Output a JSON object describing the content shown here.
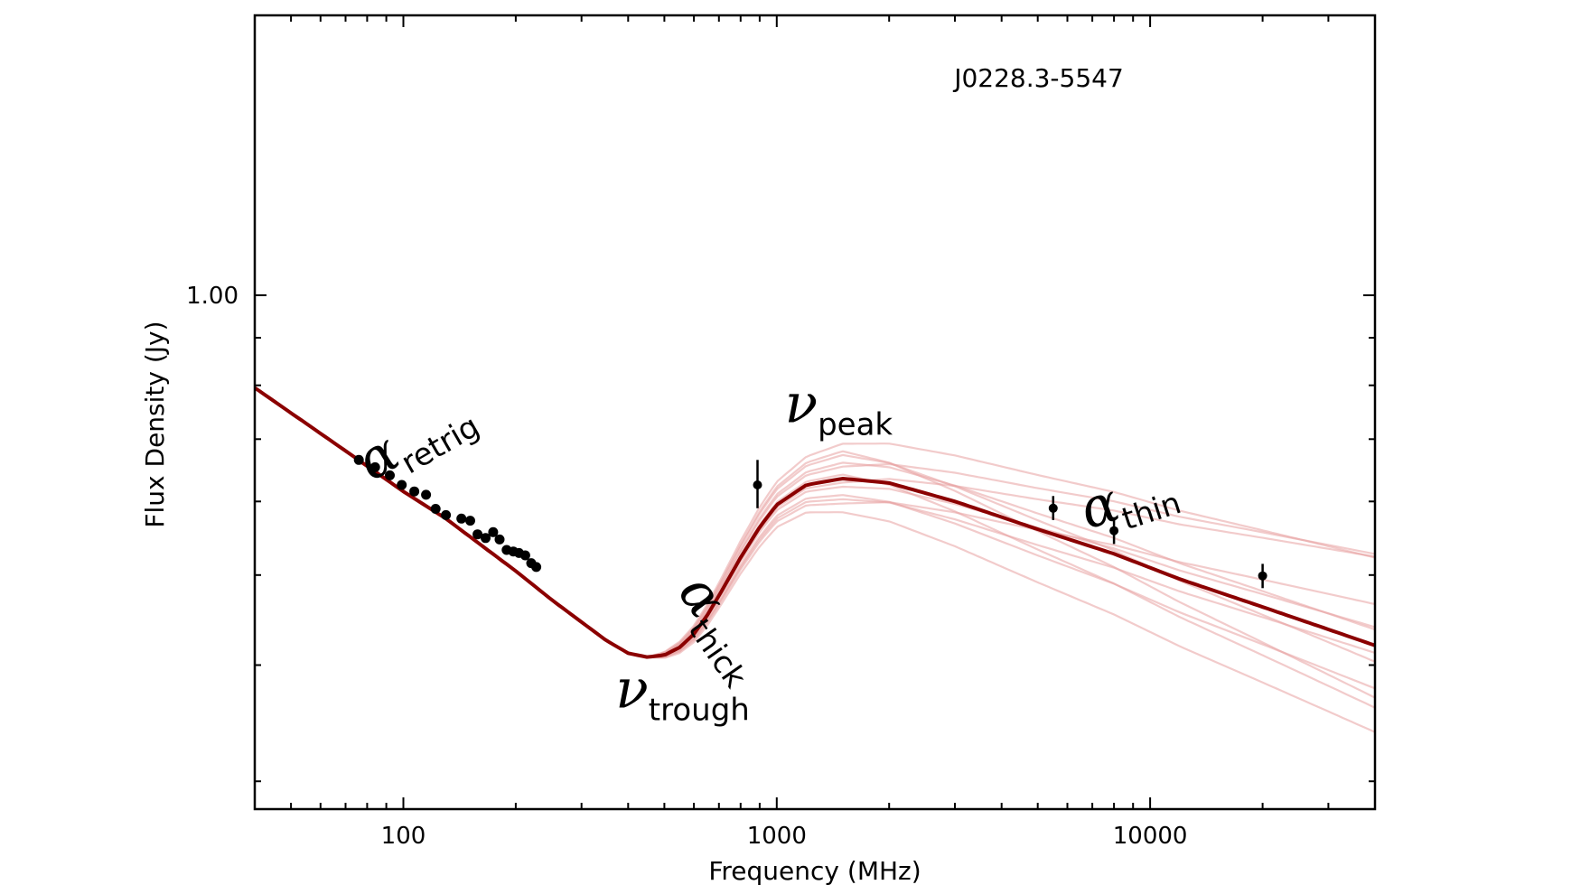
{
  "chart_data": {
    "type": "line",
    "source_name": "J0228.3-5547",
    "xlabel": "Frequency (MHz)",
    "ylabel": "Flux Density (Jy)",
    "xscale": "log",
    "yscale": "log",
    "xlim": [
      40,
      40000
    ],
    "ylim": [
      0.28,
      2.0
    ],
    "x_ticks": [
      {
        "value": 100,
        "label": "100"
      },
      {
        "value": 1000,
        "label": "1000"
      },
      {
        "value": 10000,
        "label": "10000"
      }
    ],
    "y_ticks": [
      {
        "value": 1.0,
        "label": "1.00"
      }
    ],
    "y_minor_ticks": [
      0.3,
      0.4,
      0.5,
      0.6,
      0.7,
      0.8,
      0.9,
      2.0
    ],
    "colors": {
      "best_fit": "#8b0000",
      "samples": "#e8a0a0",
      "points": "#000000"
    },
    "annotations": [
      {
        "symbol": "α",
        "subscript": "retrig",
        "x": 82,
        "y": 0.63,
        "rotate": 30
      },
      {
        "symbol": "α",
        "subscript": "thick",
        "x": 540,
        "y": 0.48,
        "rotate": -55
      },
      {
        "symbol": "ν",
        "subscript": "peak",
        "x": 1050,
        "y": 0.73,
        "rotate": 0
      },
      {
        "symbol": "ν",
        "subscript": "trough",
        "x": 370,
        "y": 0.36,
        "rotate": 0
      },
      {
        "symbol": "α",
        "subscript": "thin",
        "x": 6800,
        "y": 0.56,
        "rotate": 18
      }
    ],
    "best_fit": {
      "x": [
        40,
        60,
        80,
        100,
        130,
        160,
        200,
        250,
        300,
        350,
        400,
        450,
        500,
        550,
        600,
        650,
        700,
        800,
        900,
        1000,
        1200,
        1500,
        2000,
        3000,
        5000,
        8000,
        12000,
        20000,
        30000,
        40000
      ],
      "y": [
        0.795,
        0.71,
        0.655,
        0.615,
        0.575,
        0.54,
        0.505,
        0.47,
        0.445,
        0.425,
        0.412,
        0.408,
        0.41,
        0.418,
        0.432,
        0.452,
        0.475,
        0.522,
        0.563,
        0.595,
        0.625,
        0.635,
        0.628,
        0.6,
        0.56,
        0.527,
        0.495,
        0.462,
        0.437,
        0.42
      ]
    },
    "sample_curves": [
      {
        "peak_scale": 1.09,
        "thin_tilt": 0.04
      },
      {
        "peak_scale": 1.06,
        "thin_tilt": -0.03
      },
      {
        "peak_scale": 1.03,
        "thin_tilt": 0.06
      },
      {
        "peak_scale": 1.01,
        "thin_tilt": -0.05
      },
      {
        "peak_scale": 0.98,
        "thin_tilt": 0.02
      },
      {
        "peak_scale": 0.96,
        "thin_tilt": -0.02
      },
      {
        "peak_scale": 0.94,
        "thin_tilt": 0.05
      },
      {
        "peak_scale": 0.92,
        "thin_tilt": -0.04
      },
      {
        "peak_scale": 1.04,
        "thin_tilt": 0.0
      },
      {
        "peak_scale": 0.99,
        "thin_tilt": 0.07
      },
      {
        "peak_scale": 1.07,
        "thin_tilt": -0.06
      },
      {
        "peak_scale": 0.95,
        "thin_tilt": 0.01
      }
    ],
    "data_points": [
      {
        "x": 76,
        "y": 0.665
      },
      {
        "x": 84,
        "y": 0.653
      },
      {
        "x": 92,
        "y": 0.64
      },
      {
        "x": 99,
        "y": 0.625
      },
      {
        "x": 107,
        "y": 0.615
      },
      {
        "x": 115,
        "y": 0.61
      },
      {
        "x": 122,
        "y": 0.589
      },
      {
        "x": 130,
        "y": 0.58
      },
      {
        "x": 143,
        "y": 0.575
      },
      {
        "x": 151,
        "y": 0.572
      },
      {
        "x": 158,
        "y": 0.553
      },
      {
        "x": 166,
        "y": 0.548
      },
      {
        "x": 174,
        "y": 0.556
      },
      {
        "x": 181,
        "y": 0.546
      },
      {
        "x": 189,
        "y": 0.532
      },
      {
        "x": 197,
        "y": 0.53
      },
      {
        "x": 204,
        "y": 0.528
      },
      {
        "x": 212,
        "y": 0.525
      },
      {
        "x": 220,
        "y": 0.515
      },
      {
        "x": 227,
        "y": 0.51
      }
    ],
    "error_points": [
      {
        "x": 888,
        "y": 0.625,
        "yerr_low": 0.59,
        "yerr_high": 0.665
      },
      {
        "x": 5500,
        "y": 0.59,
        "yerr_low": 0.573,
        "yerr_high": 0.608
      },
      {
        "x": 8000,
        "y": 0.558,
        "yerr_low": 0.54,
        "yerr_high": 0.577
      },
      {
        "x": 20000,
        "y": 0.499,
        "yerr_low": 0.484,
        "yerr_high": 0.514
      }
    ]
  }
}
